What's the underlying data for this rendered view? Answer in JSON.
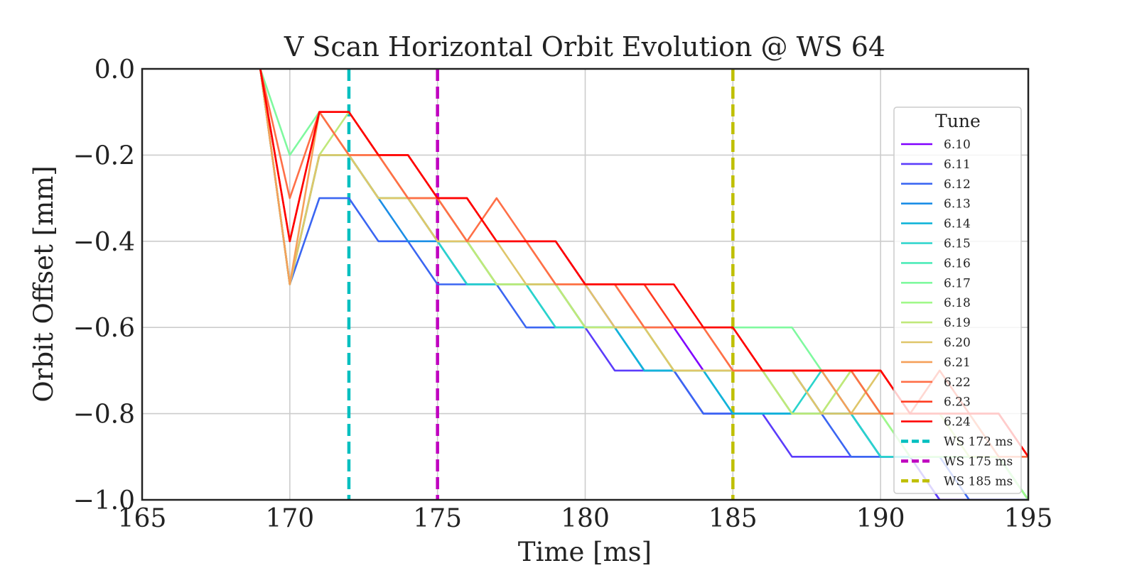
{
  "chart_data": {
    "type": "line",
    "title": "V Scan Horizontal Orbit Evolution @ WS 64",
    "xlabel": "Time [ms]",
    "ylabel": "Orbit Offset [mm]",
    "xlim": [
      165,
      195
    ],
    "ylim": [
      -1.0,
      0.0
    ],
    "xticks": [
      165,
      170,
      175,
      180,
      185,
      190,
      195
    ],
    "xtick_labels": [
      "165",
      "170",
      "175",
      "180",
      "185",
      "190",
      "195"
    ],
    "yticks": [
      0.0,
      -0.2,
      -0.4,
      -0.6,
      -0.8,
      -1.0
    ],
    "ytick_labels": [
      "0.0",
      "−0.2",
      "−0.4",
      "−0.6",
      "−0.8",
      "−1.0"
    ],
    "grid": true,
    "legend": {
      "title": "Tune",
      "placement": "right"
    },
    "x": [
      169,
      170,
      171,
      172,
      173,
      174,
      175,
      176,
      177,
      178,
      179,
      180,
      181,
      182,
      183,
      184,
      185,
      186,
      187,
      188,
      189,
      190,
      191,
      192,
      193,
      194,
      195
    ],
    "series": [
      {
        "name": "6.10",
        "color": "#8000ff",
        "values": [
          0.0,
          -0.5,
          -0.2,
          -0.2,
          -0.3,
          -0.3,
          -0.4,
          -0.4,
          -0.4,
          -0.4,
          -0.4,
          -0.5,
          -0.6,
          -0.6,
          -0.6,
          -0.7,
          -0.7,
          -0.7,
          -0.7,
          -0.8,
          -0.8,
          -0.9,
          -0.9,
          -1.0,
          -1.0,
          -1.0,
          -1.0
        ]
      },
      {
        "name": "6.11",
        "color": "#5b3dfb",
        "values": [
          0.0,
          -0.5,
          -0.2,
          -0.2,
          -0.3,
          -0.3,
          -0.4,
          -0.5,
          -0.5,
          -0.5,
          -0.5,
          -0.6,
          -0.7,
          -0.7,
          -0.7,
          -0.8,
          -0.8,
          -0.8,
          -0.9,
          -0.9,
          -0.9,
          -0.9,
          -0.9,
          -1.0,
          -1.0,
          -1.0,
          -1.0
        ]
      },
      {
        "name": "6.12",
        "color": "#3b66f2",
        "values": [
          0.0,
          -0.5,
          -0.3,
          -0.3,
          -0.4,
          -0.4,
          -0.5,
          -0.5,
          -0.5,
          -0.6,
          -0.6,
          -0.6,
          -0.6,
          -0.7,
          -0.7,
          -0.8,
          -0.8,
          -0.8,
          -0.8,
          -0.8,
          -0.9,
          -0.9,
          -0.9,
          -0.9,
          -1.0,
          -1.0,
          -1.0
        ]
      },
      {
        "name": "6.13",
        "color": "#1b8ee6",
        "values": [
          0.0,
          -0.5,
          -0.2,
          -0.2,
          -0.3,
          -0.4,
          -0.4,
          -0.4,
          -0.5,
          -0.5,
          -0.5,
          -0.6,
          -0.6,
          -0.7,
          -0.7,
          -0.7,
          -0.8,
          -0.8,
          -0.8,
          -0.8,
          -0.8,
          -0.9,
          -0.9,
          -0.9,
          -0.9,
          -0.9,
          -1.0
        ]
      },
      {
        "name": "6.14",
        "color": "#12b5d9",
        "values": [
          0.0,
          -0.5,
          -0.2,
          -0.2,
          -0.3,
          -0.3,
          -0.4,
          -0.5,
          -0.5,
          -0.5,
          -0.6,
          -0.6,
          -0.6,
          -0.7,
          -0.7,
          -0.7,
          -0.8,
          -0.8,
          -0.8,
          -0.8,
          -0.8,
          -0.9,
          -0.9,
          -0.9,
          -0.9,
          -0.9,
          -1.0
        ]
      },
      {
        "name": "6.15",
        "color": "#2ad4cc",
        "values": [
          0.0,
          -0.5,
          -0.2,
          -0.2,
          -0.3,
          -0.3,
          -0.4,
          -0.5,
          -0.5,
          -0.5,
          -0.6,
          -0.6,
          -0.6,
          -0.6,
          -0.7,
          -0.7,
          -0.7,
          -0.7,
          -0.8,
          -0.7,
          -0.8,
          -0.9,
          -0.9,
          -0.9,
          -0.9,
          -0.9,
          -1.0
        ]
      },
      {
        "name": "6.16",
        "color": "#4debb8",
        "values": [
          0.0,
          -0.5,
          -0.2,
          -0.2,
          -0.3,
          -0.3,
          -0.4,
          -0.4,
          -0.5,
          -0.5,
          -0.5,
          -0.6,
          -0.6,
          -0.6,
          -0.7,
          -0.7,
          -0.7,
          -0.7,
          -0.7,
          -0.8,
          -0.8,
          -0.8,
          -0.9,
          -0.9,
          -0.9,
          -0.9,
          -1.0
        ]
      },
      {
        "name": "6.17",
        "color": "#7ff99f",
        "values": [
          0.0,
          -0.2,
          -0.1,
          -0.2,
          -0.3,
          -0.3,
          -0.3,
          -0.4,
          -0.5,
          -0.5,
          -0.5,
          -0.6,
          -0.6,
          -0.6,
          -0.6,
          -0.6,
          -0.6,
          -0.6,
          -0.6,
          -0.7,
          -0.7,
          -0.8,
          -0.8,
          -0.8,
          -0.8,
          -0.9,
          -1.0
        ]
      },
      {
        "name": "6.18",
        "color": "#a1f88a",
        "values": [
          0.0,
          -0.5,
          -0.2,
          -0.2,
          -0.3,
          -0.3,
          -0.4,
          -0.4,
          -0.5,
          -0.5,
          -0.5,
          -0.6,
          -0.6,
          -0.6,
          -0.7,
          -0.7,
          -0.7,
          -0.7,
          -0.8,
          -0.8,
          -0.7,
          -0.8,
          -0.9,
          -0.9,
          -0.9,
          -0.9,
          -1.0
        ]
      },
      {
        "name": "6.19",
        "color": "#c0e87a",
        "values": [
          0.0,
          -0.5,
          -0.2,
          -0.1,
          -0.2,
          -0.3,
          -0.4,
          -0.4,
          -0.5,
          -0.5,
          -0.5,
          -0.6,
          -0.6,
          -0.6,
          -0.7,
          -0.7,
          -0.7,
          -0.7,
          -0.8,
          -0.8,
          -0.7,
          -0.8,
          -0.8,
          -0.8,
          -0.9,
          -0.9,
          -0.9
        ]
      },
      {
        "name": "6.20",
        "color": "#dfc66a",
        "values": [
          0.0,
          -0.5,
          -0.2,
          -0.2,
          -0.3,
          -0.3,
          -0.4,
          -0.4,
          -0.4,
          -0.5,
          -0.5,
          -0.5,
          -0.6,
          -0.6,
          -0.7,
          -0.7,
          -0.7,
          -0.7,
          -0.7,
          -0.8,
          -0.8,
          -0.7,
          -0.8,
          -0.8,
          -0.8,
          -0.8,
          -0.9
        ]
      },
      {
        "name": "6.21",
        "color": "#f5a05a",
        "values": [
          0.0,
          -0.5,
          -0.1,
          -0.2,
          -0.2,
          -0.3,
          -0.3,
          -0.4,
          -0.4,
          -0.4,
          -0.5,
          -0.5,
          -0.5,
          -0.6,
          -0.6,
          -0.6,
          -0.7,
          -0.7,
          -0.7,
          -0.7,
          -0.8,
          -0.8,
          -0.8,
          -0.8,
          -0.8,
          -0.8,
          -0.9
        ]
      },
      {
        "name": "6.22",
        "color": "#ff6f47",
        "values": [
          0.0,
          -0.3,
          -0.1,
          -0.2,
          -0.2,
          -0.3,
          -0.3,
          -0.4,
          -0.3,
          -0.4,
          -0.5,
          -0.5,
          -0.5,
          -0.6,
          -0.6,
          -0.6,
          -0.7,
          -0.7,
          -0.7,
          -0.7,
          -0.7,
          -0.8,
          -0.8,
          -0.8,
          -0.8,
          -0.9,
          -0.9
        ]
      },
      {
        "name": "6.23",
        "color": "#ff3d22",
        "values": [
          0.0,
          -0.4,
          -0.1,
          -0.1,
          -0.2,
          -0.2,
          -0.3,
          -0.3,
          -0.4,
          -0.4,
          -0.4,
          -0.5,
          -0.5,
          -0.5,
          -0.6,
          -0.6,
          -0.6,
          -0.7,
          -0.7,
          -0.7,
          -0.7,
          -0.7,
          -0.8,
          -0.7,
          -0.8,
          -0.8,
          -0.9
        ]
      },
      {
        "name": "6.24",
        "color": "#ff0000",
        "values": [
          0.0,
          -0.4,
          -0.1,
          -0.1,
          -0.2,
          -0.2,
          -0.3,
          -0.3,
          -0.4,
          -0.4,
          -0.4,
          -0.5,
          -0.5,
          -0.5,
          -0.5,
          -0.6,
          -0.6,
          -0.7,
          -0.7,
          -0.7,
          -0.7,
          -0.7,
          -0.8,
          -0.8,
          -0.8,
          -0.8,
          -0.9
        ]
      }
    ],
    "vlines": [
      {
        "name": "WS 172 ms",
        "x": 172,
        "color": "#00bfbf"
      },
      {
        "name": "WS 175 ms",
        "x": 175,
        "color": "#bf00bf"
      },
      {
        "name": "WS 185 ms",
        "x": 185,
        "color": "#bfbf00"
      }
    ]
  }
}
